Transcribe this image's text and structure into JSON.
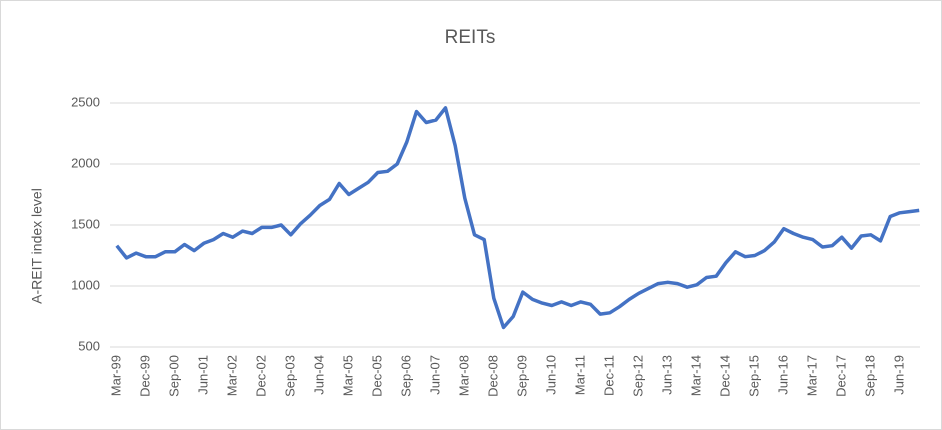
{
  "chart_data": {
    "type": "line",
    "title": "REITs",
    "y_label": "A-REIT index level",
    "categories": [
      "Mar-99",
      null,
      null,
      "Dec-99",
      null,
      null,
      "Sep-00",
      null,
      null,
      "Jun-01",
      null,
      null,
      "Mar-02",
      null,
      null,
      "Dec-02",
      null,
      null,
      "Sep-03",
      null,
      null,
      "Jun-04",
      null,
      null,
      "Mar-05",
      null,
      null,
      "Dec-05",
      null,
      null,
      "Sep-06",
      null,
      null,
      "Jun-07",
      null,
      null,
      "Mar-08",
      null,
      null,
      "Dec-08",
      null,
      null,
      "Sep-09",
      null,
      null,
      "Jun-10",
      null,
      null,
      "Mar-11",
      null,
      null,
      "Dec-11",
      null,
      null,
      "Sep-12",
      null,
      null,
      "Jun-13",
      null,
      null,
      "Mar-14",
      null,
      null,
      "Dec-14",
      null,
      null,
      "Sep-15",
      null,
      null,
      "Jun-16",
      null,
      null,
      "Mar-17",
      null,
      null,
      "Dec-17",
      null,
      null,
      "Sep-18",
      null,
      null,
      "Jun-19",
      null,
      null
    ],
    "values": [
      1330,
      1230,
      1270,
      1240,
      1240,
      1280,
      1280,
      1340,
      1290,
      1350,
      1380,
      1430,
      1400,
      1450,
      1430,
      1480,
      1480,
      1500,
      1420,
      1510,
      1580,
      1660,
      1710,
      1840,
      1750,
      1800,
      1850,
      1930,
      1940,
      2000,
      2180,
      2430,
      2340,
      2360,
      2460,
      2150,
      1720,
      1420,
      1380,
      900,
      660,
      750,
      950,
      890,
      860,
      840,
      870,
      840,
      870,
      850,
      770,
      780,
      830,
      890,
      940,
      980,
      1020,
      1030,
      1020,
      990,
      1010,
      1070,
      1080,
      1190,
      1280,
      1240,
      1250,
      1290,
      1360,
      1470,
      1430,
      1400,
      1380,
      1320,
      1330,
      1400,
      1310,
      1410,
      1420,
      1370,
      1570,
      1600,
      1610,
      1620
    ],
    "color": "#4472c4",
    "ylim": [
      500,
      2500
    ],
    "yticks": [
      500,
      1000,
      1500,
      2000,
      2500
    ],
    "grid": true
  }
}
